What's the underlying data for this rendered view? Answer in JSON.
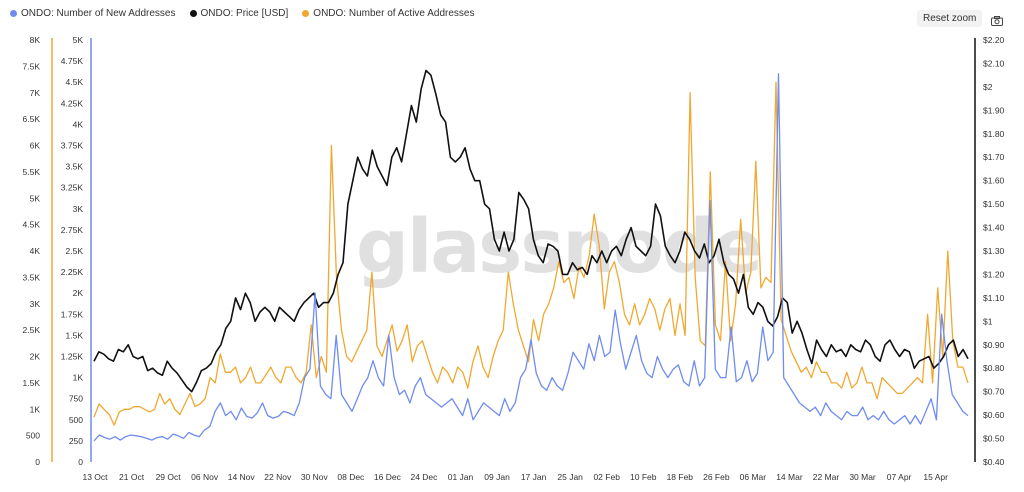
{
  "legend": {
    "items": [
      {
        "label": "ONDO: Number of New Addresses",
        "color": "#6f8cf0"
      },
      {
        "label": "ONDO: Price [USD]",
        "color": "#111111"
      },
      {
        "label": "ONDO: Number of Active Addresses",
        "color": "#f0a830"
      }
    ]
  },
  "toolbar": {
    "reset_label": "Reset zoom",
    "camera_icon": "camera-icon"
  },
  "watermark": "glassnode",
  "chart_data": {
    "type": "line",
    "x_tick_labels": [
      "13 Oct",
      "21 Oct",
      "29 Oct",
      "06 Nov",
      "14 Nov",
      "22 Nov",
      "30 Nov",
      "08 Dec",
      "16 Dec",
      "24 Dec",
      "01 Jan",
      "09 Jan",
      "17 Jan",
      "25 Jan",
      "02 Feb",
      "10 Feb",
      "18 Feb",
      "26 Feb",
      "06 Mar",
      "14 Mar",
      "22 Mar",
      "30 Mar",
      "07 Apr",
      "15 Apr"
    ],
    "axes": {
      "outer_left": {
        "ticks": [
          "0",
          "500",
          "1K",
          "1.5K",
          "2K",
          "2.5K",
          "3K",
          "3.5K",
          "4K",
          "4.5K",
          "5K",
          "5.5K",
          "6K",
          "6.5K",
          "7K",
          "7.5K",
          "8K"
        ],
        "range": [
          0,
          8000
        ],
        "color": "#f0a830",
        "series": "ONDO: Number of Active Addresses"
      },
      "inner_left": {
        "ticks": [
          "0",
          "250",
          "500",
          "750",
          "1K",
          "1.25K",
          "1.5K",
          "1.75K",
          "2K",
          "2.25K",
          "2.5K",
          "2.75K",
          "3K",
          "3.25K",
          "3.5K",
          "3.75K",
          "4K",
          "4.25K",
          "4.5K",
          "4.75K",
          "5K"
        ],
        "range": [
          0,
          5000
        ],
        "color": "#6f8cf0",
        "series": "ONDO: Number of New Addresses"
      },
      "right": {
        "ticks": [
          "$0.40",
          "$0.50",
          "$0.60",
          "$0.70",
          "$0.80",
          "$0.90",
          "$1",
          "$1.10",
          "$1.20",
          "$1.30",
          "$1.40",
          "$1.50",
          "$1.60",
          "$1.70",
          "$1.80",
          "$1.90",
          "$2",
          "$2.10",
          "$2.20"
        ],
        "range": [
          0.4,
          2.2
        ],
        "color": "#111111",
        "series": "ONDO: Price [USD]"
      }
    },
    "series": [
      {
        "name": "ONDO: Number of Active Addresses",
        "color": "#f0a830",
        "axis": "outer_left",
        "values": [
          850,
          1100,
          1000,
          900,
          700,
          950,
          1000,
          1000,
          1050,
          1050,
          1000,
          950,
          1000,
          1300,
          1100,
          1200,
          1000,
          900,
          1100,
          1300,
          1050,
          1100,
          1200,
          1600,
          1500,
          2050,
          1700,
          1700,
          1800,
          1500,
          1600,
          1800,
          1500,
          1500,
          1650,
          1800,
          1600,
          1500,
          1800,
          1800,
          1600,
          1500,
          1700,
          2600,
          1600,
          2000,
          1700,
          6000,
          3500,
          2500,
          2000,
          1900,
          2100,
          2300,
          2500,
          3600,
          2200,
          2000,
          2300,
          2600,
          2100,
          2300,
          2600,
          1900,
          2200,
          2300,
          2000,
          1700,
          1500,
          1800,
          1700,
          1500,
          1800,
          1700,
          1400,
          1900,
          2200,
          1800,
          1600,
          2000,
          2300,
          2500,
          3600,
          3000,
          2500,
          2200,
          1900,
          2700,
          2300,
          2800,
          3000,
          3300,
          3800,
          3400,
          3500,
          3100,
          3700,
          3500,
          3900,
          4700,
          4100,
          2900,
          3600,
          3800,
          3400,
          2800,
          2600,
          3000,
          2600,
          2800,
          3100,
          2900,
          2500,
          2900,
          3100,
          2400,
          3000,
          2400,
          7000,
          3500,
          2300,
          2200,
          5500,
          2600,
          2300,
          3800,
          2300,
          3000,
          4600,
          3200,
          3600,
          5700,
          3300,
          3500,
          3400,
          7200,
          2700,
          2400,
          2100,
          1900,
          1700,
          1800,
          1600,
          1900,
          1700,
          1700,
          1500,
          1500,
          1400,
          1700,
          1400,
          1500,
          1800,
          1500,
          1500,
          1200,
          1600,
          1500,
          1400,
          1300,
          1300,
          1400,
          1500,
          1600,
          1500,
          2800,
          1500,
          3300,
          2000,
          4000,
          2300,
          1800,
          1800,
          1500
        ]
      },
      {
        "name": "ONDO: Price [USD]",
        "color": "#111111",
        "axis": "right",
        "values": [
          0.83,
          0.87,
          0.86,
          0.84,
          0.83,
          0.88,
          0.87,
          0.9,
          0.85,
          0.84,
          0.85,
          0.79,
          0.8,
          0.78,
          0.77,
          0.83,
          0.8,
          0.78,
          0.75,
          0.72,
          0.7,
          0.74,
          0.79,
          0.8,
          0.82,
          0.87,
          0.9,
          0.97,
          1.0,
          1.1,
          1.05,
          1.12,
          1.08,
          1.0,
          1.04,
          1.06,
          1.04,
          1.0,
          1.06,
          1.04,
          1.02,
          1.0,
          1.05,
          1.08,
          1.1,
          1.12,
          1.06,
          1.08,
          1.08,
          1.12,
          1.2,
          1.25,
          1.5,
          1.6,
          1.7,
          1.65,
          1.62,
          1.73,
          1.66,
          1.62,
          1.58,
          1.7,
          1.74,
          1.68,
          1.8,
          1.92,
          1.85,
          1.99,
          2.07,
          2.05,
          1.97,
          1.88,
          1.85,
          1.7,
          1.68,
          1.7,
          1.74,
          1.65,
          1.6,
          1.6,
          1.5,
          1.48,
          1.35,
          1.3,
          1.38,
          1.3,
          1.35,
          1.55,
          1.52,
          1.48,
          1.35,
          1.28,
          1.25,
          1.33,
          1.32,
          1.3,
          1.2,
          1.2,
          1.25,
          1.22,
          1.23,
          1.2,
          1.28,
          1.25,
          1.3,
          1.25,
          1.3,
          1.32,
          1.28,
          1.35,
          1.4,
          1.32,
          1.3,
          1.28,
          1.32,
          1.5,
          1.45,
          1.32,
          1.28,
          1.25,
          1.3,
          1.38,
          1.35,
          1.3,
          1.27,
          1.33,
          1.25,
          1.28,
          1.35,
          1.25,
          1.2,
          1.18,
          1.12,
          1.2,
          1.06,
          1.03,
          1.08,
          1.06,
          1.0,
          0.98,
          1.02,
          1.1,
          1.08,
          0.95,
          1.0,
          0.95,
          0.88,
          0.82,
          0.92,
          0.88,
          0.85,
          0.9,
          0.87,
          0.88,
          0.85,
          0.9,
          0.88,
          0.87,
          0.92,
          0.9,
          0.85,
          0.83,
          0.9,
          0.92,
          0.88,
          0.85,
          0.88,
          0.87,
          0.8,
          0.83,
          0.84,
          0.85,
          0.8,
          0.82,
          0.85,
          0.9,
          0.92,
          0.85,
          0.88,
          0.84
        ]
      },
      {
        "name": "ONDO: Number of New Addresses",
        "color": "#6f8cf0",
        "axis": "inner_left",
        "values": [
          250,
          320,
          290,
          270,
          300,
          260,
          300,
          320,
          310,
          300,
          280,
          260,
          290,
          300,
          270,
          330,
          310,
          280,
          350,
          320,
          300,
          380,
          420,
          600,
          700,
          550,
          600,
          500,
          640,
          540,
          520,
          580,
          700,
          550,
          520,
          540,
          600,
          580,
          550,
          700,
          1000,
          1100,
          2000,
          900,
          800,
          750,
          1500,
          800,
          700,
          600,
          750,
          900,
          1000,
          1200,
          1000,
          900,
          1500,
          1000,
          800,
          850,
          700,
          900,
          1000,
          800,
          750,
          700,
          650,
          700,
          750,
          650,
          550,
          750,
          500,
          600,
          700,
          650,
          600,
          550,
          750,
          600,
          700,
          1000,
          1100,
          1450,
          1050,
          900,
          850,
          1000,
          900,
          850,
          1050,
          1300,
          1200,
          1100,
          1400,
          1200,
          1500,
          1250,
          1300,
          1800,
          1400,
          1100,
          1300,
          1500,
          1200,
          1050,
          1000,
          1250,
          1100,
          1000,
          1100,
          1150,
          950,
          900,
          1200,
          900,
          1000,
          3100,
          1100,
          1000,
          1000,
          1600,
          950,
          1000,
          1200,
          950,
          1050,
          1600,
          1200,
          1300,
          4600,
          1000,
          900,
          800,
          700,
          650,
          600,
          650,
          550,
          700,
          600,
          550,
          500,
          600,
          550,
          550,
          650,
          500,
          550,
          500,
          600,
          500,
          450,
          500,
          550,
          450,
          550,
          450,
          600,
          750,
          500,
          1750,
          1200,
          800,
          700,
          600,
          550
        ]
      }
    ]
  }
}
